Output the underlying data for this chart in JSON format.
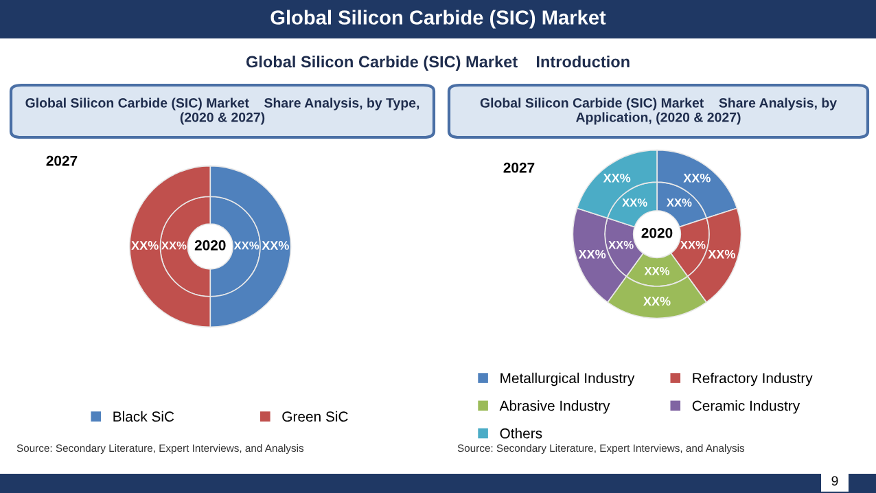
{
  "chart_data": [
    {
      "type": "donut",
      "title": "Global Silicon Carbide (SIC) Market    Share Analysis, by Type, (2020 & 2027)",
      "annotations": [
        "Global Silicon Carbide (SIC) Market",
        "Global Silicon Carbide (SIC) Market    Introduction",
        "2020",
        "2027",
        "Source: Secondary Literature, Expert Interviews, and Analysis",
        "9"
      ],
      "categories": [
        "Black SiC",
        "Green SiC"
      ],
      "colors": [
        "#4f81bd",
        "#c0504d"
      ],
      "series": [
        {
          "values": [
            50,
            50
          ],
          "value_labels": [
            "XX%",
            "XX%"
          ]
        },
        {
          "values": [
            50,
            50
          ],
          "value_labels": [
            "XX%",
            "XX%"
          ]
        }
      ],
      "legend": "bottom"
    },
    {
      "type": "donut",
      "title": "Global Silicon Carbide (SIC) Market    Share Analysis, by Application, (2020 & 2027)",
      "annotations": [
        "2020",
        "2027",
        "Source: Secondary Literature, Expert Interviews, and Analysis"
      ],
      "categories": [
        "Metallurgical Industry",
        "Refractory Industry",
        "Abrasive Industry",
        "Ceramic Industry",
        "Others"
      ],
      "colors": [
        "#4f81bd",
        "#c0504d",
        "#9bbb59",
        "#8064a2",
        "#4bacc6"
      ],
      "series": [
        {
          "values": [
            20,
            20,
            20,
            20,
            20
          ],
          "value_labels": [
            "XX%",
            "XX%",
            "XX%",
            "XX%",
            "XX%"
          ]
        },
        {
          "values": [
            20,
            20,
            20,
            20,
            20
          ],
          "value_labels": [
            "XX%",
            "XX%",
            "XX%",
            "XX%",
            "XX%"
          ]
        }
      ],
      "legend": "bottom"
    }
  ]
}
